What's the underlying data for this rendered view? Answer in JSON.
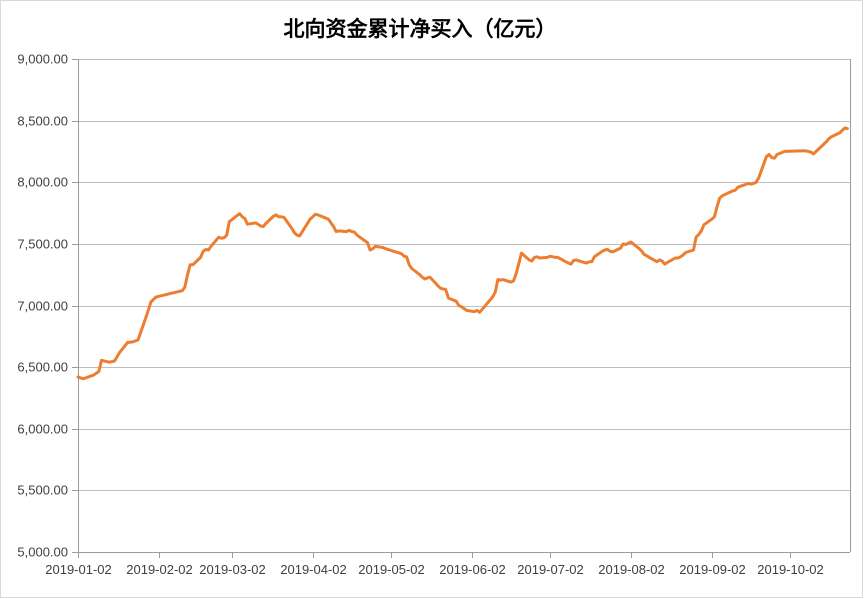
{
  "chart_data": {
    "type": "line",
    "title": "北向资金累计净买入（亿元）",
    "xlabel": "",
    "ylabel": "",
    "ylim": [
      5000,
      9000
    ],
    "ystep": 500,
    "y_tick_labels": [
      "5,000.00",
      "5,500.00",
      "6,000.00",
      "6,500.00",
      "7,000.00",
      "7,500.00",
      "8,000.00",
      "8,500.00",
      "9,000.00"
    ],
    "x_ticks": [
      "2019-01-02",
      "2019-02-02",
      "2019-03-02",
      "2019-04-02",
      "2019-05-02",
      "2019-06-02",
      "2019-07-02",
      "2019-08-02",
      "2019-09-02",
      "2019-10-02"
    ],
    "x_domain": [
      "2019-01-02",
      "2019-10-25"
    ],
    "grid": "horizontal",
    "legend": "none",
    "line_color": "#ED7D31",
    "series": [
      {
        "name": "北向资金累计净买入",
        "points": [
          [
            "2019-01-02",
            6420
          ],
          [
            "2019-01-04",
            6405
          ],
          [
            "2019-01-08",
            6435
          ],
          [
            "2019-01-10",
            6465
          ],
          [
            "2019-01-11",
            6555
          ],
          [
            "2019-01-14",
            6540
          ],
          [
            "2019-01-16",
            6550
          ],
          [
            "2019-01-18",
            6620
          ],
          [
            "2019-01-21",
            6700
          ],
          [
            "2019-01-23",
            6705
          ],
          [
            "2019-01-25",
            6720
          ],
          [
            "2019-01-28",
            6900
          ],
          [
            "2019-01-30",
            7030
          ],
          [
            "2019-02-01",
            7070
          ],
          [
            "2019-02-11",
            7120
          ],
          [
            "2019-02-12",
            7150
          ],
          [
            "2019-02-13",
            7250
          ],
          [
            "2019-02-14",
            7330
          ],
          [
            "2019-02-15",
            7330
          ],
          [
            "2019-02-18",
            7390
          ],
          [
            "2019-02-19",
            7440
          ],
          [
            "2019-02-20",
            7455
          ],
          [
            "2019-02-21",
            7450
          ],
          [
            "2019-02-22",
            7480
          ],
          [
            "2019-02-25",
            7555
          ],
          [
            "2019-02-26",
            7545
          ],
          [
            "2019-02-27",
            7550
          ],
          [
            "2019-02-28",
            7570
          ],
          [
            "2019-03-01",
            7680
          ],
          [
            "2019-03-04",
            7730
          ],
          [
            "2019-03-05",
            7745
          ],
          [
            "2019-03-06",
            7720
          ],
          [
            "2019-03-07",
            7705
          ],
          [
            "2019-03-08",
            7660
          ],
          [
            "2019-03-11",
            7670
          ],
          [
            "2019-03-12",
            7660
          ],
          [
            "2019-03-13",
            7645
          ],
          [
            "2019-03-14",
            7640
          ],
          [
            "2019-03-15",
            7665
          ],
          [
            "2019-03-18",
            7725
          ],
          [
            "2019-03-19",
            7735
          ],
          [
            "2019-03-20",
            7720
          ],
          [
            "2019-03-21",
            7720
          ],
          [
            "2019-03-22",
            7715
          ],
          [
            "2019-03-25",
            7625
          ],
          [
            "2019-03-26",
            7590
          ],
          [
            "2019-03-27",
            7570
          ],
          [
            "2019-03-28",
            7565
          ],
          [
            "2019-03-29",
            7600
          ],
          [
            "2019-04-01",
            7700
          ],
          [
            "2019-04-02",
            7720
          ],
          [
            "2019-04-03",
            7740
          ],
          [
            "2019-04-04",
            7735
          ],
          [
            "2019-04-08",
            7700
          ],
          [
            "2019-04-09",
            7670
          ],
          [
            "2019-04-10",
            7640
          ],
          [
            "2019-04-11",
            7600
          ],
          [
            "2019-04-12",
            7605
          ],
          [
            "2019-04-15",
            7600
          ],
          [
            "2019-04-16",
            7610
          ],
          [
            "2019-04-17",
            7600
          ],
          [
            "2019-04-18",
            7595
          ],
          [
            "2019-04-19",
            7570
          ],
          [
            "2019-04-22",
            7525
          ],
          [
            "2019-04-23",
            7510
          ],
          [
            "2019-04-24",
            7450
          ],
          [
            "2019-04-25",
            7460
          ],
          [
            "2019-04-26",
            7480
          ],
          [
            "2019-04-29",
            7470
          ],
          [
            "2019-04-30",
            7460
          ],
          [
            "2019-05-06",
            7420
          ],
          [
            "2019-05-07",
            7400
          ],
          [
            "2019-05-08",
            7395
          ],
          [
            "2019-05-09",
            7330
          ],
          [
            "2019-05-10",
            7300
          ],
          [
            "2019-05-13",
            7250
          ],
          [
            "2019-05-14",
            7230
          ],
          [
            "2019-05-15",
            7215
          ],
          [
            "2019-05-16",
            7225
          ],
          [
            "2019-05-17",
            7230
          ],
          [
            "2019-05-20",
            7160
          ],
          [
            "2019-05-21",
            7140
          ],
          [
            "2019-05-22",
            7135
          ],
          [
            "2019-05-23",
            7130
          ],
          [
            "2019-05-24",
            7060
          ],
          [
            "2019-05-27",
            7035
          ],
          [
            "2019-05-28",
            7000
          ],
          [
            "2019-05-29",
            6990
          ],
          [
            "2019-05-30",
            6975
          ],
          [
            "2019-05-31",
            6960
          ],
          [
            "2019-06-03",
            6950
          ],
          [
            "2019-06-04",
            6960
          ],
          [
            "2019-06-05",
            6945
          ],
          [
            "2019-06-06",
            6970
          ],
          [
            "2019-06-10",
            7070
          ],
          [
            "2019-06-11",
            7110
          ],
          [
            "2019-06-12",
            7210
          ],
          [
            "2019-06-13",
            7205
          ],
          [
            "2019-06-14",
            7210
          ],
          [
            "2019-06-17",
            7190
          ],
          [
            "2019-06-18",
            7200
          ],
          [
            "2019-06-19",
            7260
          ],
          [
            "2019-06-20",
            7340
          ],
          [
            "2019-06-21",
            7425
          ],
          [
            "2019-06-24",
            7370
          ],
          [
            "2019-06-25",
            7360
          ],
          [
            "2019-06-26",
            7390
          ],
          [
            "2019-06-27",
            7395
          ],
          [
            "2019-06-28",
            7385
          ],
          [
            "2019-07-01",
            7390
          ],
          [
            "2019-07-02",
            7400
          ],
          [
            "2019-07-03",
            7395
          ],
          [
            "2019-07-04",
            7390
          ],
          [
            "2019-07-05",
            7390
          ],
          [
            "2019-07-08",
            7355
          ],
          [
            "2019-07-09",
            7345
          ],
          [
            "2019-07-10",
            7335
          ],
          [
            "2019-07-11",
            7365
          ],
          [
            "2019-07-12",
            7370
          ],
          [
            "2019-07-15",
            7350
          ],
          [
            "2019-07-16",
            7345
          ],
          [
            "2019-07-17",
            7355
          ],
          [
            "2019-07-18",
            7355
          ],
          [
            "2019-07-19",
            7395
          ],
          [
            "2019-07-22",
            7440
          ],
          [
            "2019-07-23",
            7450
          ],
          [
            "2019-07-24",
            7455
          ],
          [
            "2019-07-25",
            7440
          ],
          [
            "2019-07-26",
            7435
          ],
          [
            "2019-07-29",
            7465
          ],
          [
            "2019-07-30",
            7500
          ],
          [
            "2019-07-31",
            7495
          ],
          [
            "2019-08-01",
            7505
          ],
          [
            "2019-08-02",
            7515
          ],
          [
            "2019-08-05",
            7465
          ],
          [
            "2019-08-06",
            7445
          ],
          [
            "2019-08-07",
            7415
          ],
          [
            "2019-08-08",
            7405
          ],
          [
            "2019-08-09",
            7390
          ],
          [
            "2019-08-12",
            7355
          ],
          [
            "2019-08-13",
            7370
          ],
          [
            "2019-08-14",
            7360
          ],
          [
            "2019-08-15",
            7335
          ],
          [
            "2019-08-16",
            7350
          ],
          [
            "2019-08-19",
            7385
          ],
          [
            "2019-08-20",
            7385
          ],
          [
            "2019-08-21",
            7395
          ],
          [
            "2019-08-22",
            7410
          ],
          [
            "2019-08-23",
            7430
          ],
          [
            "2019-08-26",
            7450
          ],
          [
            "2019-08-27",
            7555
          ],
          [
            "2019-08-28",
            7575
          ],
          [
            "2019-08-29",
            7605
          ],
          [
            "2019-08-30",
            7655
          ],
          [
            "2019-09-02",
            7700
          ],
          [
            "2019-09-03",
            7720
          ],
          [
            "2019-09-04",
            7800
          ],
          [
            "2019-09-05",
            7870
          ],
          [
            "2019-09-06",
            7890
          ],
          [
            "2019-09-09",
            7920
          ],
          [
            "2019-09-10",
            7930
          ],
          [
            "2019-09-11",
            7935
          ],
          [
            "2019-09-12",
            7960
          ],
          [
            "2019-09-16",
            7990
          ],
          [
            "2019-09-17",
            7985
          ],
          [
            "2019-09-18",
            7990
          ],
          [
            "2019-09-19",
            8000
          ],
          [
            "2019-09-20",
            8035
          ],
          [
            "2019-09-23",
            8210
          ],
          [
            "2019-09-24",
            8225
          ],
          [
            "2019-09-25",
            8200
          ],
          [
            "2019-09-26",
            8195
          ],
          [
            "2019-09-27",
            8225
          ],
          [
            "2019-09-30",
            8250
          ],
          [
            "2019-10-08",
            8255
          ],
          [
            "2019-10-09",
            8250
          ],
          [
            "2019-10-10",
            8245
          ],
          [
            "2019-10-11",
            8230
          ],
          [
            "2019-10-14",
            8290
          ],
          [
            "2019-10-15",
            8310
          ],
          [
            "2019-10-16",
            8330
          ],
          [
            "2019-10-17",
            8355
          ],
          [
            "2019-10-18",
            8370
          ],
          [
            "2019-10-21",
            8400
          ],
          [
            "2019-10-22",
            8420
          ],
          [
            "2019-10-23",
            8440
          ],
          [
            "2019-10-24",
            8435
          ]
        ]
      }
    ]
  }
}
